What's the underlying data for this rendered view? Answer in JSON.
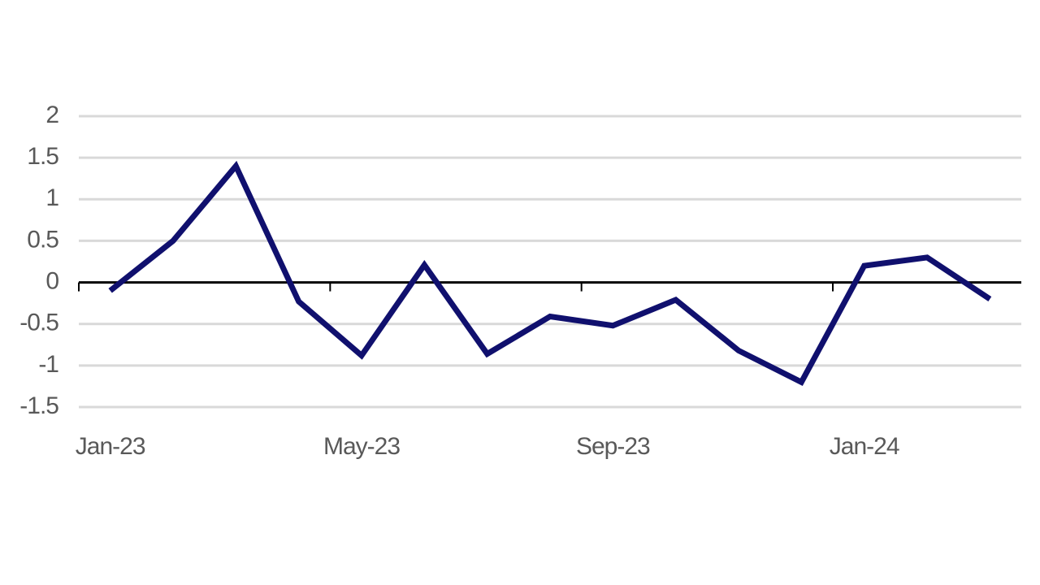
{
  "chart_data": {
    "type": "line",
    "categories": [
      "Jan-23",
      null,
      null,
      null,
      "May-23",
      null,
      null,
      null,
      "Sep-23",
      null,
      null,
      null,
      "Jan-24",
      null,
      null
    ],
    "series": [
      {
        "color": "#10106e",
        "values": [
          -0.1,
          0.5,
          1.4,
          -0.23,
          -0.88,
          0.21,
          -0.86,
          -0.41,
          -0.52,
          -0.21,
          -0.82,
          -1.2,
          0.2,
          0.3,
          -0.2
        ]
      }
    ],
    "ylim": [
      -1.5,
      2
    ],
    "yticks": [
      -1.5,
      -1,
      -0.5,
      0,
      0.5,
      1,
      1.5,
      2
    ],
    "grid": true,
    "tick_every": 4
  }
}
